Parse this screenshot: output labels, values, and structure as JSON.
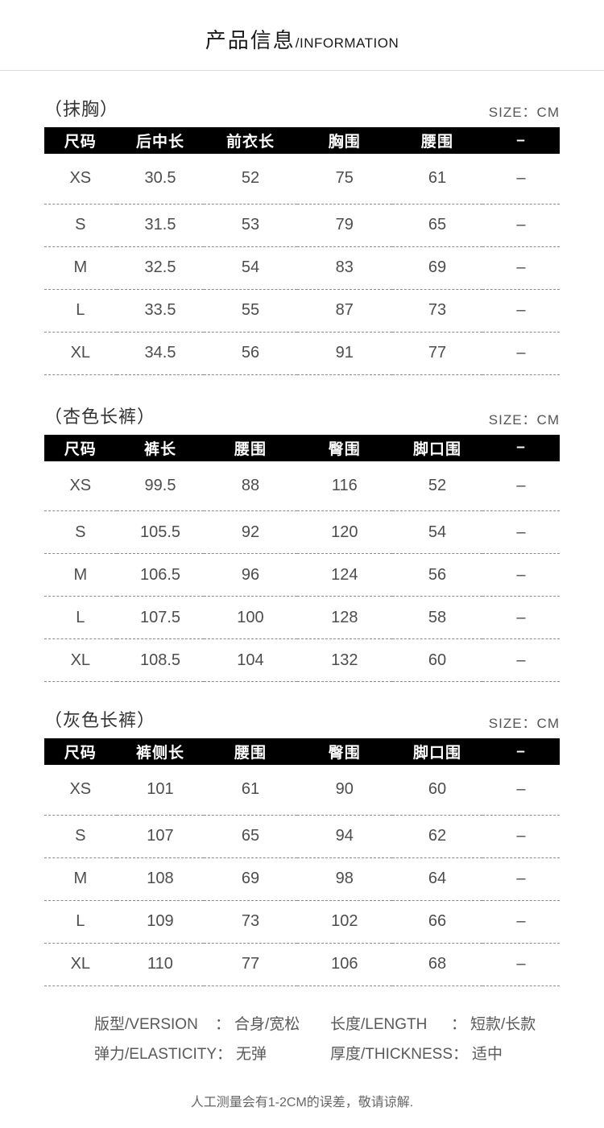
{
  "header": {
    "title_cn": "产品信息",
    "title_en": "/INFORMATION"
  },
  "tables": [
    {
      "title": "（抹胸）",
      "size_label": "SIZE：CM",
      "columns": [
        "尺码",
        "后中长",
        "前衣长",
        "胸围",
        "腰围",
        "–"
      ],
      "rows": [
        [
          "XS",
          "30.5",
          "52",
          "75",
          "61",
          "–"
        ],
        [
          "S",
          "31.5",
          "53",
          "79",
          "65",
          "–"
        ],
        [
          "M",
          "32.5",
          "54",
          "83",
          "69",
          "–"
        ],
        [
          "L",
          "33.5",
          "55",
          "87",
          "73",
          "–"
        ],
        [
          "XL",
          "34.5",
          "56",
          "91",
          "77",
          "–"
        ]
      ]
    },
    {
      "title": "（杏色长裤）",
      "size_label": "SIZE：CM",
      "columns": [
        "尺码",
        "裤长",
        "腰围",
        "臀围",
        "脚口围",
        "–"
      ],
      "rows": [
        [
          "XS",
          "99.5",
          "88",
          "116",
          "52",
          "–"
        ],
        [
          "S",
          "105.5",
          "92",
          "120",
          "54",
          "–"
        ],
        [
          "M",
          "106.5",
          "96",
          "124",
          "56",
          "–"
        ],
        [
          "L",
          "107.5",
          "100",
          "128",
          "58",
          "–"
        ],
        [
          "XL",
          "108.5",
          "104",
          "132",
          "60",
          "–"
        ]
      ]
    },
    {
      "title": "（灰色长裤）",
      "size_label": "SIZE：CM",
      "columns": [
        "尺码",
        "裤侧长",
        "腰围",
        "臀围",
        "脚口围",
        "–"
      ],
      "rows": [
        [
          "XS",
          "101",
          "61",
          "90",
          "60",
          "–"
        ],
        [
          "S",
          "107",
          "65",
          "94",
          "62",
          "–"
        ],
        [
          "M",
          "108",
          "69",
          "98",
          "64",
          "–"
        ],
        [
          "L",
          "109",
          "73",
          "102",
          "66",
          "–"
        ],
        [
          "XL",
          "110",
          "77",
          "106",
          "68",
          "–"
        ]
      ]
    }
  ],
  "footer": {
    "colon": "：",
    "specs": [
      {
        "label": "版型/VERSION",
        "value": "合身/宽松"
      },
      {
        "label": "长度/LENGTH",
        "value": "短款/长款"
      },
      {
        "label": "弹力/ELASTICITY",
        "value": "无弹"
      },
      {
        "label": "厚度/THICKNESS",
        "value": "适中"
      }
    ],
    "note": "人工测量会有1-2CM的误差，敬请谅解."
  },
  "colors": {
    "table_header_bg": "#000000",
    "table_header_text": "#ffffff",
    "body_text": "#4d4d4d",
    "dashed_line": "#8c8c8c",
    "divider": "#d9d9d9"
  }
}
